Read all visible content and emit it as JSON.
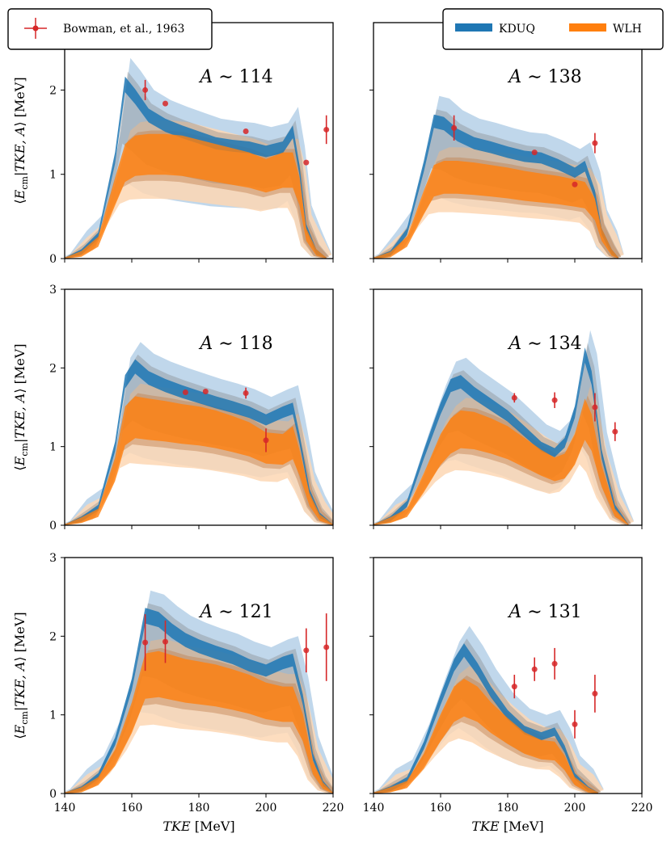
{
  "chart_data": {
    "type": "area",
    "x_domain": [
      140,
      220
    ],
    "x_ticks": [
      140,
      160,
      180,
      200,
      220
    ],
    "xlabel_italic": "TKE",
    "xlabel_unit": "[MeV]",
    "ylabel_lead": "⟨E",
    "ylabel_sub": "cm",
    "ylabel_mid": "|TKE, A⟩",
    "ylabel_unit": "[MeV]",
    "colors": {
      "kduq": "#1f77b4",
      "wlh": "#ff7f0e",
      "kduq_outer": "#b9d3e9",
      "wlh_outer": "#fdd7b4",
      "data": "#d62728"
    },
    "legend": {
      "data_label": "Bowman, et al., 1963",
      "series_labels": [
        "KDUQ",
        "WLH"
      ]
    },
    "panels": [
      {
        "title": "A ∼ 114",
        "y_domain": [
          0,
          2.8
        ],
        "y_ticks": [
          0,
          1,
          2
        ],
        "row": 0,
        "col": 0,
        "kduq_mid": [
          [
            140,
            0
          ],
          [
            145,
            0.05
          ],
          [
            150,
            0.25
          ],
          [
            155,
            1.2
          ],
          [
            158,
            2.1
          ],
          [
            161,
            1.95
          ],
          [
            165,
            1.72
          ],
          [
            170,
            1.6
          ],
          [
            175,
            1.52
          ],
          [
            180,
            1.45
          ],
          [
            185,
            1.38
          ],
          [
            190,
            1.35
          ],
          [
            195,
            1.33
          ],
          [
            200,
            1.28
          ],
          [
            205,
            1.33
          ],
          [
            208,
            1.52
          ],
          [
            210,
            1.05
          ],
          [
            212,
            0.35
          ],
          [
            215,
            0.05
          ],
          [
            218,
            0
          ]
        ],
        "wlh_mid": [
          [
            140,
            0
          ],
          [
            145,
            0.03
          ],
          [
            150,
            0.2
          ],
          [
            155,
            0.9
          ],
          [
            158,
            1.3
          ],
          [
            161,
            1.4
          ],
          [
            165,
            1.42
          ],
          [
            170,
            1.42
          ],
          [
            175,
            1.4
          ],
          [
            180,
            1.35
          ],
          [
            185,
            1.3
          ],
          [
            190,
            1.25
          ],
          [
            195,
            1.2
          ],
          [
            200,
            1.12
          ],
          [
            205,
            1.2
          ],
          [
            208,
            1.2
          ],
          [
            210,
            0.9
          ],
          [
            212,
            0.3
          ],
          [
            215,
            0.05
          ],
          [
            218,
            0
          ]
        ],
        "points": [
          {
            "x": 164,
            "y": 2.0,
            "err": 0.12
          },
          {
            "x": 170,
            "y": 1.84,
            "err": 0
          },
          {
            "x": 194,
            "y": 1.51,
            "err": 0
          },
          {
            "x": 212,
            "y": 1.14,
            "err": 0
          },
          {
            "x": 218,
            "y": 1.53,
            "err": 0.17
          }
        ]
      },
      {
        "title": "A ∼ 138",
        "y_domain": [
          0,
          2.8
        ],
        "y_ticks": [
          0,
          1,
          2
        ],
        "row": 0,
        "col": 1,
        "kduq_mid": [
          [
            140,
            0
          ],
          [
            145,
            0.03
          ],
          [
            150,
            0.3
          ],
          [
            155,
            1.1
          ],
          [
            158,
            1.65
          ],
          [
            161,
            1.62
          ],
          [
            165,
            1.48
          ],
          [
            170,
            1.38
          ],
          [
            175,
            1.33
          ],
          [
            180,
            1.27
          ],
          [
            185,
            1.22
          ],
          [
            190,
            1.2
          ],
          [
            195,
            1.12
          ],
          [
            200,
            1.02
          ],
          [
            203,
            1.1
          ],
          [
            206,
            0.75
          ],
          [
            208,
            0.3
          ],
          [
            211,
            0.05
          ],
          [
            213,
            0
          ]
        ],
        "wlh_mid": [
          [
            140,
            0
          ],
          [
            145,
            0.02
          ],
          [
            150,
            0.2
          ],
          [
            155,
            0.75
          ],
          [
            158,
            1.05
          ],
          [
            161,
            1.1
          ],
          [
            165,
            1.1
          ],
          [
            170,
            1.08
          ],
          [
            175,
            1.05
          ],
          [
            180,
            1.02
          ],
          [
            185,
            0.98
          ],
          [
            190,
            0.95
          ],
          [
            195,
            0.92
          ],
          [
            200,
            0.88
          ],
          [
            203,
            0.85
          ],
          [
            206,
            0.65
          ],
          [
            208,
            0.3
          ],
          [
            211,
            0.05
          ],
          [
            213,
            0
          ]
        ],
        "points": [
          {
            "x": 164,
            "y": 1.55,
            "err": 0.15
          },
          {
            "x": 188,
            "y": 1.26,
            "err": 0
          },
          {
            "x": 200,
            "y": 0.88,
            "err": 0
          },
          {
            "x": 206,
            "y": 1.37,
            "err": 0.12
          }
        ]
      },
      {
        "title": "A ∼ 118",
        "y_domain": [
          0,
          3
        ],
        "y_ticks": [
          0,
          1,
          2,
          3
        ],
        "row": 1,
        "col": 0,
        "kduq_mid": [
          [
            140,
            0
          ],
          [
            145,
            0.05
          ],
          [
            150,
            0.2
          ],
          [
            155,
            1.0
          ],
          [
            158,
            1.85
          ],
          [
            161,
            2.05
          ],
          [
            165,
            1.9
          ],
          [
            170,
            1.8
          ],
          [
            175,
            1.72
          ],
          [
            180,
            1.65
          ],
          [
            185,
            1.58
          ],
          [
            190,
            1.52
          ],
          [
            195,
            1.45
          ],
          [
            200,
            1.35
          ],
          [
            205,
            1.45
          ],
          [
            208,
            1.5
          ],
          [
            210,
            1.1
          ],
          [
            213,
            0.4
          ],
          [
            216,
            0.1
          ],
          [
            220,
            0
          ]
        ],
        "wlh_mid": [
          [
            140,
            0
          ],
          [
            145,
            0.04
          ],
          [
            150,
            0.15
          ],
          [
            155,
            0.8
          ],
          [
            158,
            1.45
          ],
          [
            161,
            1.58
          ],
          [
            165,
            1.55
          ],
          [
            170,
            1.52
          ],
          [
            175,
            1.48
          ],
          [
            180,
            1.45
          ],
          [
            185,
            1.4
          ],
          [
            190,
            1.33
          ],
          [
            195,
            1.25
          ],
          [
            200,
            1.12
          ],
          [
            205,
            1.1
          ],
          [
            208,
            1.2
          ],
          [
            210,
            0.9
          ],
          [
            213,
            0.35
          ],
          [
            216,
            0.08
          ],
          [
            220,
            0
          ]
        ],
        "points": [
          {
            "x": 176,
            "y": 1.69,
            "err": 0
          },
          {
            "x": 182,
            "y": 1.7,
            "err": 0
          },
          {
            "x": 194,
            "y": 1.68,
            "err": 0.07
          },
          {
            "x": 200,
            "y": 1.08,
            "err": 0.15
          }
        ]
      },
      {
        "title": "A ∼ 134",
        "y_domain": [
          0,
          3
        ],
        "y_ticks": [
          0,
          1,
          2,
          3
        ],
        "row": 1,
        "col": 1,
        "kduq_mid": [
          [
            140,
            0
          ],
          [
            145,
            0.05
          ],
          [
            150,
            0.25
          ],
          [
            155,
            0.9
          ],
          [
            160,
            1.5
          ],
          [
            163,
            1.8
          ],
          [
            166,
            1.85
          ],
          [
            170,
            1.7
          ],
          [
            175,
            1.55
          ],
          [
            180,
            1.4
          ],
          [
            185,
            1.2
          ],
          [
            190,
            1.0
          ],
          [
            194,
            0.92
          ],
          [
            197,
            1.05
          ],
          [
            200,
            1.45
          ],
          [
            203,
            2.2
          ],
          [
            205,
            1.9
          ],
          [
            208,
            0.9
          ],
          [
            212,
            0.2
          ],
          [
            216,
            0
          ]
        ],
        "wlh_mid": [
          [
            140,
            0
          ],
          [
            145,
            0.04
          ],
          [
            150,
            0.15
          ],
          [
            155,
            0.6
          ],
          [
            160,
            1.1
          ],
          [
            163,
            1.3
          ],
          [
            166,
            1.4
          ],
          [
            170,
            1.38
          ],
          [
            175,
            1.3
          ],
          [
            180,
            1.2
          ],
          [
            185,
            1.05
          ],
          [
            190,
            0.9
          ],
          [
            194,
            0.8
          ],
          [
            197,
            0.85
          ],
          [
            200,
            1.1
          ],
          [
            203,
            1.55
          ],
          [
            205,
            1.35
          ],
          [
            208,
            0.7
          ],
          [
            212,
            0.15
          ],
          [
            216,
            0
          ]
        ],
        "points": [
          {
            "x": 182,
            "y": 1.62,
            "err": 0.06
          },
          {
            "x": 194,
            "y": 1.59,
            "err": 0.1
          },
          {
            "x": 206,
            "y": 1.5,
            "err": 0.18
          },
          {
            "x": 212,
            "y": 1.19,
            "err": 0.12
          }
        ]
      },
      {
        "title": "A ∼ 121",
        "y_domain": [
          0,
          3
        ],
        "y_ticks": [
          0,
          1,
          2,
          3
        ],
        "row": 2,
        "col": 0,
        "kduq_mid": [
          [
            140,
            0
          ],
          [
            145,
            0.03
          ],
          [
            150,
            0.2
          ],
          [
            155,
            0.65
          ],
          [
            160,
            1.4
          ],
          [
            164,
            2.3
          ],
          [
            168,
            2.25
          ],
          [
            172,
            2.1
          ],
          [
            176,
            1.98
          ],
          [
            180,
            1.9
          ],
          [
            185,
            1.82
          ],
          [
            190,
            1.75
          ],
          [
            195,
            1.65
          ],
          [
            200,
            1.58
          ],
          [
            205,
            1.68
          ],
          [
            208,
            1.72
          ],
          [
            211,
            1.2
          ],
          [
            214,
            0.45
          ],
          [
            217,
            0.1
          ],
          [
            220,
            0
          ]
        ],
        "wlh_mid": [
          [
            140,
            0
          ],
          [
            145,
            0.02
          ],
          [
            150,
            0.15
          ],
          [
            155,
            0.5
          ],
          [
            160,
            1.1
          ],
          [
            164,
            1.72
          ],
          [
            168,
            1.75
          ],
          [
            172,
            1.7
          ],
          [
            176,
            1.65
          ],
          [
            180,
            1.62
          ],
          [
            185,
            1.58
          ],
          [
            190,
            1.52
          ],
          [
            195,
            1.45
          ],
          [
            200,
            1.35
          ],
          [
            205,
            1.3
          ],
          [
            208,
            1.3
          ],
          [
            211,
            0.95
          ],
          [
            214,
            0.35
          ],
          [
            217,
            0.08
          ],
          [
            220,
            0
          ]
        ],
        "points": [
          {
            "x": 164,
            "y": 1.92,
            "err": 0.36
          },
          {
            "x": 170,
            "y": 1.93,
            "err": 0.27
          },
          {
            "x": 212,
            "y": 1.82,
            "err": 0.28
          },
          {
            "x": 218,
            "y": 1.86,
            "err": 0.43
          }
        ]
      },
      {
        "title": "A ∼ 131",
        "y_domain": [
          0,
          3
        ],
        "y_ticks": [
          0,
          1,
          2,
          3
        ],
        "row": 2,
        "col": 1,
        "kduq_mid": [
          [
            140,
            0
          ],
          [
            145,
            0.03
          ],
          [
            150,
            0.15
          ],
          [
            155,
            0.6
          ],
          [
            160,
            1.2
          ],
          [
            164,
            1.65
          ],
          [
            167,
            1.85
          ],
          [
            171,
            1.6
          ],
          [
            175,
            1.3
          ],
          [
            180,
            1.0
          ],
          [
            185,
            0.8
          ],
          [
            190,
            0.72
          ],
          [
            194,
            0.78
          ],
          [
            197,
            0.55
          ],
          [
            200,
            0.2
          ],
          [
            204,
            0.03
          ],
          [
            207,
            0
          ]
        ],
        "wlh_mid": [
          [
            140,
            0
          ],
          [
            145,
            0.02
          ],
          [
            150,
            0.1
          ],
          [
            155,
            0.45
          ],
          [
            160,
            0.95
          ],
          [
            164,
            1.3
          ],
          [
            167,
            1.4
          ],
          [
            171,
            1.3
          ],
          [
            175,
            1.1
          ],
          [
            180,
            0.9
          ],
          [
            185,
            0.72
          ],
          [
            190,
            0.62
          ],
          [
            194,
            0.6
          ],
          [
            197,
            0.42
          ],
          [
            200,
            0.15
          ],
          [
            204,
            0.02
          ],
          [
            207,
            0
          ]
        ],
        "points": [
          {
            "x": 182,
            "y": 1.36,
            "err": 0.15
          },
          {
            "x": 188,
            "y": 1.58,
            "err": 0.15
          },
          {
            "x": 194,
            "y": 1.65,
            "err": 0.2
          },
          {
            "x": 200,
            "y": 0.88,
            "err": 0.18
          },
          {
            "x": 206,
            "y": 1.27,
            "err": 0.24
          }
        ]
      }
    ]
  }
}
